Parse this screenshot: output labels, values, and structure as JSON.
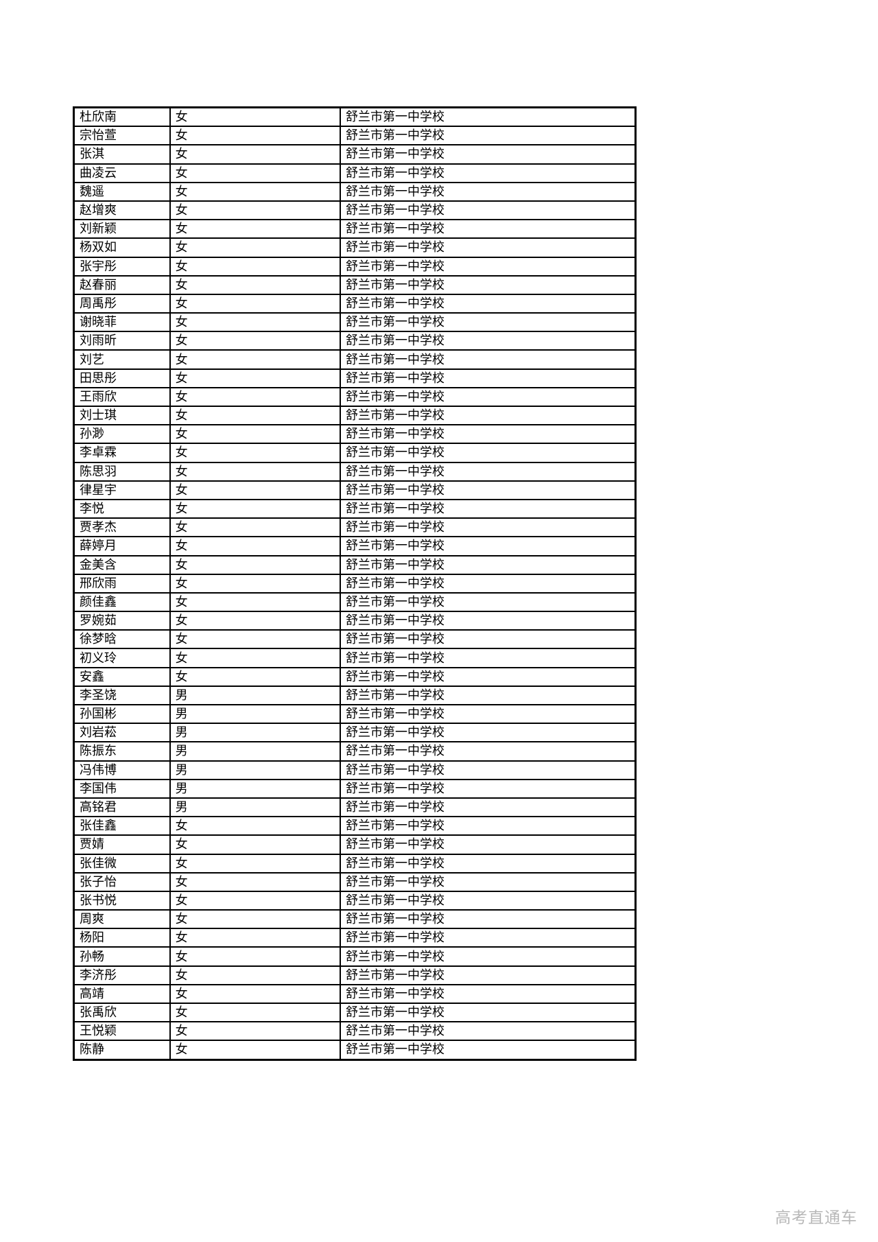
{
  "watermark": "高考直通车",
  "table": {
    "rows": [
      {
        "name": "杜欣南",
        "gender": "女",
        "school": "舒兰市第一中学校"
      },
      {
        "name": "宗怡萱",
        "gender": "女",
        "school": "舒兰市第一中学校"
      },
      {
        "name": "张淇",
        "gender": "女",
        "school": "舒兰市第一中学校"
      },
      {
        "name": "曲凌云",
        "gender": "女",
        "school": "舒兰市第一中学校"
      },
      {
        "name": "魏遥",
        "gender": "女",
        "school": "舒兰市第一中学校"
      },
      {
        "name": "赵增爽",
        "gender": "女",
        "school": "舒兰市第一中学校"
      },
      {
        "name": "刘新颖",
        "gender": "女",
        "school": "舒兰市第一中学校"
      },
      {
        "name": "杨双如",
        "gender": "女",
        "school": "舒兰市第一中学校"
      },
      {
        "name": "张宇彤",
        "gender": "女",
        "school": "舒兰市第一中学校"
      },
      {
        "name": "赵春丽",
        "gender": "女",
        "school": "舒兰市第一中学校"
      },
      {
        "name": "周禹彤",
        "gender": "女",
        "school": "舒兰市第一中学校"
      },
      {
        "name": "谢晓菲",
        "gender": "女",
        "school": "舒兰市第一中学校"
      },
      {
        "name": "刘雨昕",
        "gender": "女",
        "school": "舒兰市第一中学校"
      },
      {
        "name": "刘艺",
        "gender": "女",
        "school": "舒兰市第一中学校"
      },
      {
        "name": "田思彤",
        "gender": "女",
        "school": "舒兰市第一中学校"
      },
      {
        "name": "王雨欣",
        "gender": "女",
        "school": "舒兰市第一中学校"
      },
      {
        "name": "刘士琪",
        "gender": "女",
        "school": "舒兰市第一中学校"
      },
      {
        "name": "孙渺",
        "gender": "女",
        "school": "舒兰市第一中学校"
      },
      {
        "name": "李卓霖",
        "gender": "女",
        "school": "舒兰市第一中学校"
      },
      {
        "name": "陈思羽",
        "gender": "女",
        "school": "舒兰市第一中学校"
      },
      {
        "name": "律星宇",
        "gender": "女",
        "school": "舒兰市第一中学校"
      },
      {
        "name": "李悦",
        "gender": "女",
        "school": "舒兰市第一中学校"
      },
      {
        "name": "贾孝杰",
        "gender": "女",
        "school": "舒兰市第一中学校"
      },
      {
        "name": "薛婷月",
        "gender": "女",
        "school": "舒兰市第一中学校"
      },
      {
        "name": "金美含",
        "gender": "女",
        "school": "舒兰市第一中学校"
      },
      {
        "name": "邢欣雨",
        "gender": "女",
        "school": "舒兰市第一中学校"
      },
      {
        "name": "颜佳鑫",
        "gender": "女",
        "school": "舒兰市第一中学校"
      },
      {
        "name": "罗婉茹",
        "gender": "女",
        "school": "舒兰市第一中学校"
      },
      {
        "name": "徐梦晗",
        "gender": "女",
        "school": "舒兰市第一中学校"
      },
      {
        "name": "初义玲",
        "gender": "女",
        "school": "舒兰市第一中学校"
      },
      {
        "name": "安鑫",
        "gender": "女",
        "school": "舒兰市第一中学校"
      },
      {
        "name": "李圣饶",
        "gender": "男",
        "school": "舒兰市第一中学校"
      },
      {
        "name": "孙国彬",
        "gender": "男",
        "school": "舒兰市第一中学校"
      },
      {
        "name": "刘岩菘",
        "gender": "男",
        "school": "舒兰市第一中学校"
      },
      {
        "name": "陈振东",
        "gender": "男",
        "school": "舒兰市第一中学校"
      },
      {
        "name": "冯伟博",
        "gender": "男",
        "school": "舒兰市第一中学校"
      },
      {
        "name": "李国伟",
        "gender": "男",
        "school": "舒兰市第一中学校"
      },
      {
        "name": "高铭君",
        "gender": "男",
        "school": "舒兰市第一中学校"
      },
      {
        "name": "张佳鑫",
        "gender": "女",
        "school": "舒兰市第一中学校"
      },
      {
        "name": "贾婧",
        "gender": "女",
        "school": "舒兰市第一中学校"
      },
      {
        "name": "张佳微",
        "gender": "女",
        "school": "舒兰市第一中学校"
      },
      {
        "name": "张子怡",
        "gender": "女",
        "school": "舒兰市第一中学校"
      },
      {
        "name": "张书悦",
        "gender": "女",
        "school": "舒兰市第一中学校"
      },
      {
        "name": "周爽",
        "gender": "女",
        "school": "舒兰市第一中学校"
      },
      {
        "name": "杨阳",
        "gender": "女",
        "school": "舒兰市第一中学校"
      },
      {
        "name": "孙畅",
        "gender": "女",
        "school": "舒兰市第一中学校"
      },
      {
        "name": "李济彤",
        "gender": "女",
        "school": "舒兰市第一中学校"
      },
      {
        "name": "高靖",
        "gender": "女",
        "school": "舒兰市第一中学校"
      },
      {
        "name": "张禹欣",
        "gender": "女",
        "school": "舒兰市第一中学校"
      },
      {
        "name": "王悦颖",
        "gender": "女",
        "school": "舒兰市第一中学校"
      },
      {
        "name": "陈静",
        "gender": "女",
        "school": "舒兰市第一中学校"
      }
    ]
  }
}
